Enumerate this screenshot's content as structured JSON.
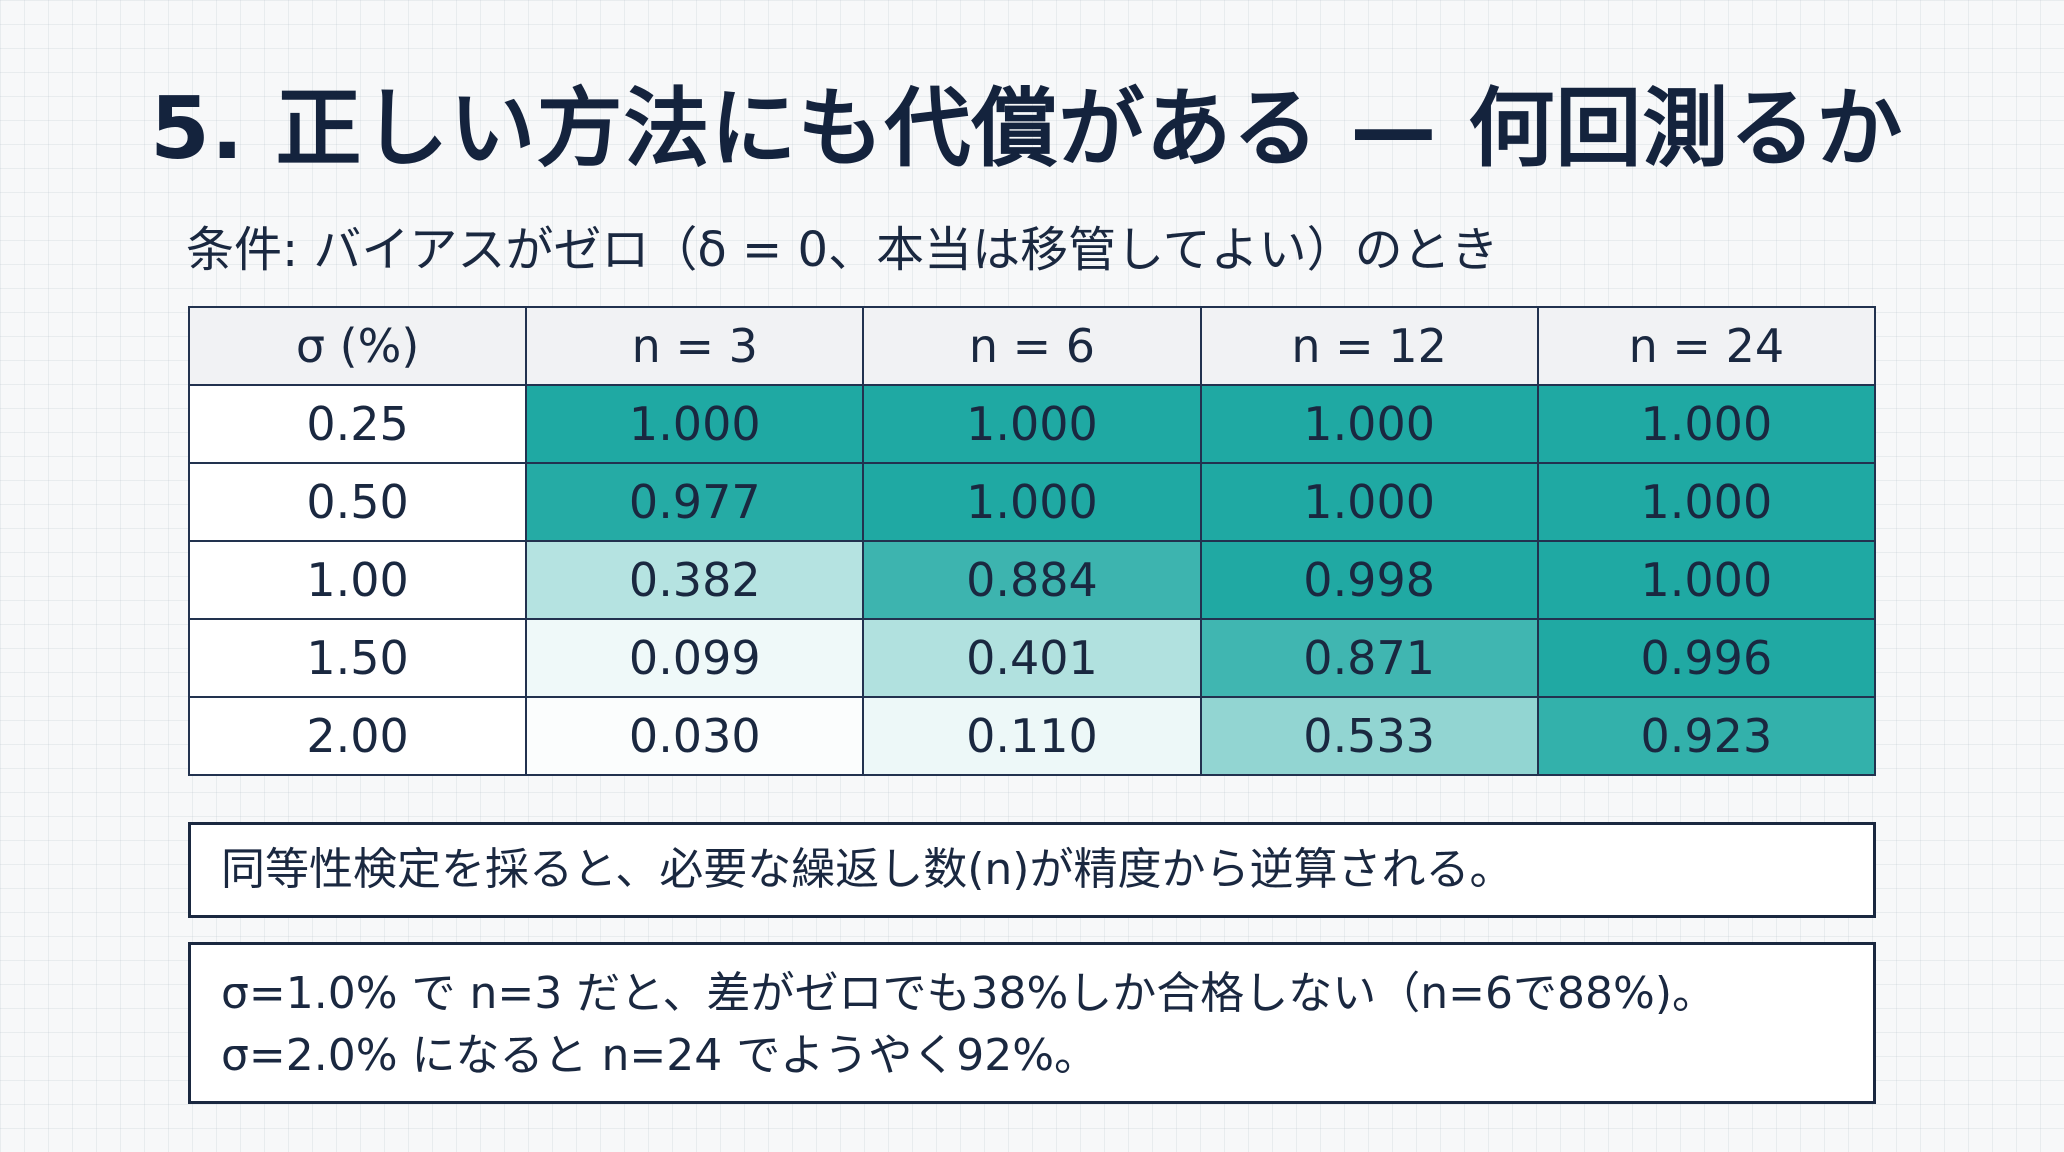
{
  "title": "5. 正しい方法にも代償がある — 何回測るか",
  "condition": "条件: バイアスがゼロ（δ = 0、本当は移管してよい）のとき",
  "table": {
    "row_header_label": "σ (%)",
    "columns": [
      "n = 3",
      "n = 6",
      "n = 12",
      "n = 24"
    ],
    "rows": [
      {
        "sigma": "0.25",
        "values": [
          "1.000",
          "1.000",
          "1.000",
          "1.000"
        ]
      },
      {
        "sigma": "0.50",
        "values": [
          "0.977",
          "1.000",
          "1.000",
          "1.000"
        ]
      },
      {
        "sigma": "1.00",
        "values": [
          "0.382",
          "0.884",
          "0.998",
          "1.000"
        ]
      },
      {
        "sigma": "1.50",
        "values": [
          "0.099",
          "0.401",
          "0.871",
          "0.996"
        ]
      },
      {
        "sigma": "2.00",
        "values": [
          "0.030",
          "0.110",
          "0.533",
          "0.923"
        ]
      }
    ]
  },
  "colors": {
    "heat_high": "#1fa9a3",
    "heat_low": "#ffffff",
    "border": "#22324f",
    "text": "#1a2840"
  },
  "notes": {
    "note1": "同等性検定を採ると、必要な繰返し数(n)が精度から逆算される。",
    "note2_line1": "σ=1.0% で n=3 だと、差がゼロでも38%しか合格しない（n=6で88%)。",
    "note2_line2": "σ=2.0% になると n=24 でようやく92%。"
  }
}
